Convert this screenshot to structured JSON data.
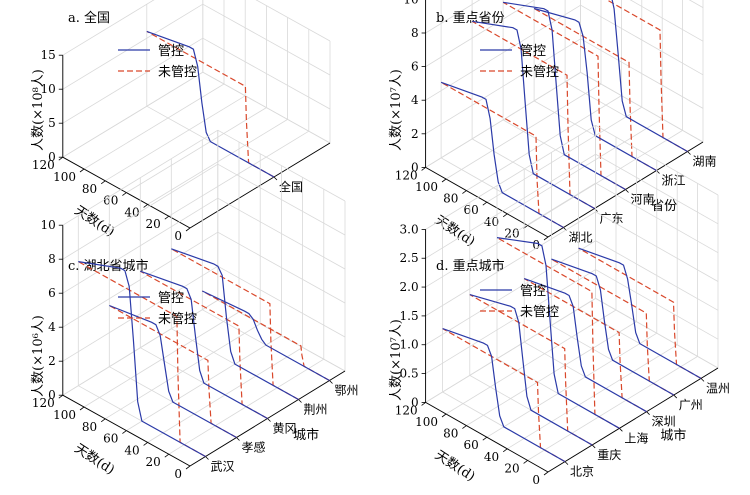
{
  "colors": {
    "controlled": "#2b3aa8",
    "uncontrolled": "#d9482b"
  },
  "chart_data": [
    {
      "type": "line3d",
      "title": "a. 全国",
      "xlabel": "天数(d)",
      "ylabel": "",
      "zlabel": "人数(×10⁸人)",
      "x_ticks": [
        0,
        20,
        40,
        60,
        80,
        100,
        120
      ],
      "z_ticks": [
        0,
        5,
        10,
        15
      ],
      "zlim": [
        0,
        15
      ],
      "categories": [
        "全国"
      ],
      "legend": [
        "管控",
        "未管控"
      ],
      "series": [
        {
          "name": "管控",
          "category": "全国",
          "x": [
            0,
            60,
            64,
            68,
            72,
            76,
            80,
            120
          ],
          "z": [
            0,
            0,
            1,
            5,
            10,
            12.2,
            12.2,
            11
          ]
        },
        {
          "name": "未管控",
          "category": "全国",
          "x": [
            0,
            24,
            26,
            27,
            120
          ],
          "z": [
            0,
            0,
            6,
            11,
            11
          ]
        }
      ]
    },
    {
      "type": "line3d",
      "title": "b. 重点省份",
      "xlabel": "天数(d)",
      "ylabel": "省份",
      "zlabel": "人数(×10⁷人)",
      "x_ticks": [
        0,
        20,
        40,
        60,
        80,
        100,
        120
      ],
      "z_ticks": [
        0,
        2,
        4,
        6,
        8,
        10
      ],
      "zlim": [
        0,
        10
      ],
      "categories": [
        "湖北",
        "广东",
        "河南",
        "浙江",
        "湖南"
      ],
      "legend": [
        "管控",
        "未管控"
      ],
      "series": [
        {
          "name": "管控",
          "category": "湖北",
          "x": [
            0,
            60,
            64,
            68,
            72,
            76,
            80,
            120
          ],
          "z": [
            0,
            0,
            0.5,
            2,
            4,
            5,
            5,
            4.5
          ]
        },
        {
          "name": "管控",
          "category": "广东",
          "x": [
            0,
            60,
            64,
            68,
            72,
            76,
            80,
            120
          ],
          "z": [
            0,
            0,
            1,
            4,
            7,
            8,
            8,
            7
          ]
        },
        {
          "name": "管控",
          "category": "河南",
          "x": [
            0,
            60,
            64,
            68,
            72,
            76,
            80,
            120
          ],
          "z": [
            0,
            0,
            1,
            4,
            7,
            8,
            8,
            7
          ]
        },
        {
          "name": "管控",
          "category": "浙江",
          "x": [
            0,
            60,
            64,
            68,
            72,
            76,
            80,
            120
          ],
          "z": [
            0,
            0,
            0.8,
            3.5,
            5.5,
            6.2,
            6.2,
            5.5
          ]
        },
        {
          "name": "管控",
          "category": "湖南",
          "x": [
            0,
            60,
            64,
            68,
            72,
            76,
            80,
            120
          ],
          "z": [
            0,
            0,
            0.8,
            3.5,
            6,
            7,
            7,
            6.3
          ]
        },
        {
          "name": "未管控",
          "category": "湖北",
          "x": [
            0,
            24,
            26,
            27,
            120
          ],
          "z": [
            0,
            0,
            2,
            4.5,
            4.5
          ]
        },
        {
          "name": "未管控",
          "category": "广东",
          "x": [
            0,
            24,
            26,
            27,
            120
          ],
          "z": [
            0,
            0,
            4,
            7,
            7
          ]
        },
        {
          "name": "未管控",
          "category": "河南",
          "x": [
            0,
            24,
            26,
            27,
            120
          ],
          "z": [
            0,
            0,
            4,
            7,
            7
          ]
        },
        {
          "name": "未管控",
          "category": "浙江",
          "x": [
            0,
            24,
            26,
            27,
            120
          ],
          "z": [
            0,
            0,
            3,
            5.5,
            5.5
          ]
        },
        {
          "name": "未管控",
          "category": "湖南",
          "x": [
            0,
            24,
            26,
            27,
            120
          ],
          "z": [
            0,
            0,
            3.5,
            6.3,
            6.3
          ]
        }
      ]
    },
    {
      "type": "line3d",
      "title": "c. 湖北省城市",
      "xlabel": "天数(d)",
      "ylabel": "城市",
      "zlabel": "人数(×10⁶人)",
      "x_ticks": [
        0,
        20,
        40,
        60,
        80,
        100,
        120
      ],
      "z_ticks": [
        0,
        2,
        4,
        6,
        8,
        10
      ],
      "zlim": [
        0,
        10
      ],
      "categories": [
        "武汉",
        "孝感",
        "黄冈",
        "荆州",
        "鄂州"
      ],
      "legend": [
        "管控",
        "未管控"
      ],
      "series": [
        {
          "name": "管控",
          "category": "武汉",
          "x": [
            0,
            60,
            64,
            68,
            72,
            76,
            80,
            120
          ],
          "z": [
            0,
            0,
            1,
            4.5,
            7.5,
            8.3,
            8.3,
            7.3
          ]
        },
        {
          "name": "管控",
          "category": "孝感",
          "x": [
            0,
            60,
            64,
            68,
            72,
            76,
            80,
            120
          ],
          "z": [
            0,
            0,
            0.5,
            2,
            3.5,
            4,
            4,
            3.6
          ]
        },
        {
          "name": "管控",
          "category": "黄冈",
          "x": [
            0,
            60,
            64,
            68,
            72,
            76,
            80,
            120
          ],
          "z": [
            0,
            0,
            0.6,
            2.5,
            4.5,
            5,
            5,
            4.5
          ]
        },
        {
          "name": "管控",
          "category": "荆州",
          "x": [
            0,
            60,
            64,
            68,
            72,
            76,
            80,
            120
          ],
          "z": [
            0,
            0,
            0.6,
            2.5,
            4.8,
            5.2,
            5.2,
            4.7
          ]
        },
        {
          "name": "管控",
          "category": "鄂州",
          "x": [
            0,
            60,
            64,
            68,
            72,
            76,
            80,
            120
          ],
          "z": [
            0,
            0,
            0.2,
            0.6,
            1.1,
            1.3,
            1.3,
            1.1
          ]
        },
        {
          "name": "未管控",
          "category": "武汉",
          "x": [
            0,
            24,
            26,
            27,
            120
          ],
          "z": [
            0,
            0,
            4,
            7.3,
            7.3
          ]
        },
        {
          "name": "未管控",
          "category": "孝感",
          "x": [
            0,
            24,
            26,
            27,
            120
          ],
          "z": [
            0,
            0,
            2,
            3.6,
            3.6
          ]
        },
        {
          "name": "未管控",
          "category": "黄冈",
          "x": [
            0,
            24,
            26,
            27,
            120
          ],
          "z": [
            0,
            0,
            2.5,
            4.5,
            4.5
          ]
        },
        {
          "name": "未管控",
          "category": "荆州",
          "x": [
            0,
            24,
            26,
            27,
            120
          ],
          "z": [
            0,
            0,
            2.5,
            4.7,
            4.7
          ]
        },
        {
          "name": "未管控",
          "category": "鄂州",
          "x": [
            0,
            24,
            26,
            27,
            120
          ],
          "z": [
            0,
            0,
            0.6,
            1.1,
            1.1
          ]
        }
      ]
    },
    {
      "type": "line3d",
      "title": "d. 重点城市",
      "xlabel": "天数(d)",
      "ylabel": "城市",
      "zlabel": "人数(×10⁷人)",
      "x_ticks": [
        0,
        20,
        40,
        60,
        80,
        100,
        120
      ],
      "z_ticks": [
        0,
        0.5,
        1.0,
        1.5,
        2.0,
        2.5,
        3.0
      ],
      "z_tick_labels": [
        "0",
        "0.5",
        "1.0",
        "1.5",
        "2.0",
        "2.5",
        "3.0"
      ],
      "zlim": [
        0,
        3
      ],
      "categories": [
        "北京",
        "重庆",
        "上海",
        "深圳",
        "广州",
        "温州"
      ],
      "legend": [
        "管控",
        "未管控"
      ],
      "series": [
        {
          "name": "管控",
          "category": "北京",
          "x": [
            0,
            60,
            64,
            68,
            72,
            76,
            80,
            120
          ],
          "z": [
            0,
            0,
            0.15,
            0.6,
            1.1,
            1.25,
            1.25,
            1.1
          ]
        },
        {
          "name": "管控",
          "category": "重庆",
          "x": [
            0,
            60,
            64,
            68,
            72,
            76,
            80,
            120
          ],
          "z": [
            0,
            0,
            0.2,
            0.8,
            1.4,
            1.6,
            1.6,
            1.4
          ]
        },
        {
          "name": "管控",
          "category": "上海",
          "x": [
            0,
            60,
            64,
            68,
            72,
            76,
            80,
            120
          ],
          "z": [
            0,
            0,
            0.3,
            1.2,
            2.1,
            2.4,
            2.4,
            2.1
          ]
        },
        {
          "name": "管控",
          "category": "深圳",
          "x": [
            0,
            60,
            64,
            68,
            72,
            76,
            80,
            120
          ],
          "z": [
            0,
            0,
            0.15,
            0.6,
            1.1,
            1.25,
            1.25,
            1.1
          ]
        },
        {
          "name": "管控",
          "category": "广州",
          "x": [
            0,
            60,
            64,
            68,
            72,
            76,
            80,
            120
          ],
          "z": [
            0,
            0,
            0.15,
            0.6,
            1.1,
            1.3,
            1.3,
            1.15
          ]
        },
        {
          "name": "管控",
          "category": "温州",
          "x": [
            0,
            60,
            64,
            68,
            72,
            76,
            80,
            120
          ],
          "z": [
            0,
            0,
            0.15,
            0.6,
            1.0,
            1.2,
            1.2,
            1.05
          ]
        },
        {
          "name": "未管控",
          "category": "北京",
          "x": [
            0,
            24,
            26,
            27,
            120
          ],
          "z": [
            0,
            0,
            0.6,
            1.1,
            1.1
          ]
        },
        {
          "name": "未管控",
          "category": "重庆",
          "x": [
            0,
            24,
            26,
            27,
            120
          ],
          "z": [
            0,
            0,
            0.8,
            1.4,
            1.4
          ]
        },
        {
          "name": "未管控",
          "category": "上海",
          "x": [
            0,
            24,
            26,
            27,
            120
          ],
          "z": [
            0,
            0,
            1.2,
            2.1,
            2.1
          ]
        },
        {
          "name": "未管控",
          "category": "深圳",
          "x": [
            0,
            24,
            26,
            27,
            120
          ],
          "z": [
            0,
            0,
            0.6,
            1.1,
            1.1
          ]
        },
        {
          "name": "未管控",
          "category": "广州",
          "x": [
            0,
            24,
            26,
            27,
            120
          ],
          "z": [
            0,
            0,
            0.6,
            1.15,
            1.15
          ]
        },
        {
          "name": "未管控",
          "category": "温州",
          "x": [
            0,
            24,
            26,
            27,
            120
          ],
          "z": [
            0,
            0,
            0.55,
            1.05,
            1.05
          ]
        }
      ]
    }
  ]
}
